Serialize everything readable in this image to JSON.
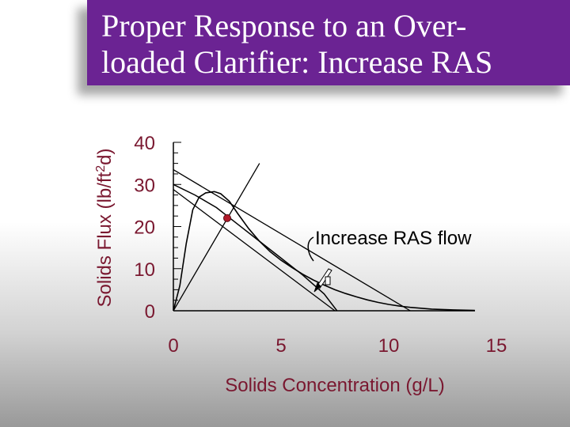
{
  "title": {
    "text": "Proper Response to an Over-\nloaded Clarifier: Increase RAS"
  },
  "colors": {
    "title_bg": "#6b2393",
    "title_text": "#ffffff",
    "axis_text": "#7a1830",
    "curve": "#000000",
    "operating_point": "#b01a2a"
  },
  "chart_data": {
    "type": "line",
    "xlabel": "Solids Concentration  (g/L)",
    "ylabel_main": "Solids Flux  (lb/ft",
    "ylabel_sup": "2",
    "ylabel_tail": "d)",
    "xlim": [
      0,
      15
    ],
    "ylim": [
      0,
      40
    ],
    "x_ticks": [
      "0",
      "5",
      "10",
      "15"
    ],
    "y_ticks": [
      "0",
      "10",
      "20",
      "30",
      "40"
    ],
    "series": [
      {
        "kind": "gravity_flux",
        "points": [
          [
            0,
            0
          ],
          [
            0.3,
            6
          ],
          [
            0.6,
            16
          ],
          [
            0.9,
            24
          ],
          [
            1.2,
            27
          ],
          [
            1.5,
            28
          ],
          [
            1.9,
            28.3
          ],
          [
            2.2,
            27.8
          ],
          [
            2.6,
            26
          ],
          [
            3.0,
            23
          ],
          [
            3.5,
            19.5
          ],
          [
            4.0,
            16.5
          ],
          [
            4.5,
            14
          ],
          [
            5.0,
            12
          ],
          [
            5.5,
            10.3
          ],
          [
            6.0,
            8.7
          ],
          [
            6.5,
            7.3
          ],
          [
            7.0,
            6.1
          ],
          [
            7.5,
            5
          ],
          [
            8.0,
            4.1
          ],
          [
            8.5,
            3.3
          ],
          [
            9.0,
            2.6
          ],
          [
            9.5,
            2.0
          ],
          [
            10.0,
            1.5
          ],
          [
            10.5,
            1.1
          ],
          [
            11.0,
            0.8
          ],
          [
            11.5,
            0.6
          ],
          [
            12.0,
            0.4
          ],
          [
            13.0,
            0.2
          ],
          [
            14.0,
            0.1
          ]
        ]
      },
      {
        "kind": "overflow_line",
        "points": [
          [
            0,
            0
          ],
          [
            4.0,
            35
          ]
        ]
      },
      {
        "kind": "underflow_line_original",
        "points": [
          [
            0,
            28.8
          ],
          [
            7.5,
            0
          ]
        ]
      },
      {
        "kind": "underflow_line_increased_ras",
        "points": [
          [
            0,
            33.5
          ],
          [
            11.0,
            0
          ]
        ]
      },
      {
        "kind": "total_flux",
        "points": [
          [
            0,
            30
          ],
          [
            1.0,
            27.5
          ],
          [
            2.0,
            24.5
          ],
          [
            3.0,
            20.5
          ],
          [
            4.0,
            16.5
          ],
          [
            5.0,
            12.5
          ],
          [
            6.0,
            8.5
          ],
          [
            7.0,
            4.0
          ],
          [
            7.6,
            0
          ]
        ]
      }
    ],
    "operating_point": {
      "x": 2.5,
      "y": 22
    },
    "annotation": {
      "text": "Increase RAS flow"
    }
  }
}
